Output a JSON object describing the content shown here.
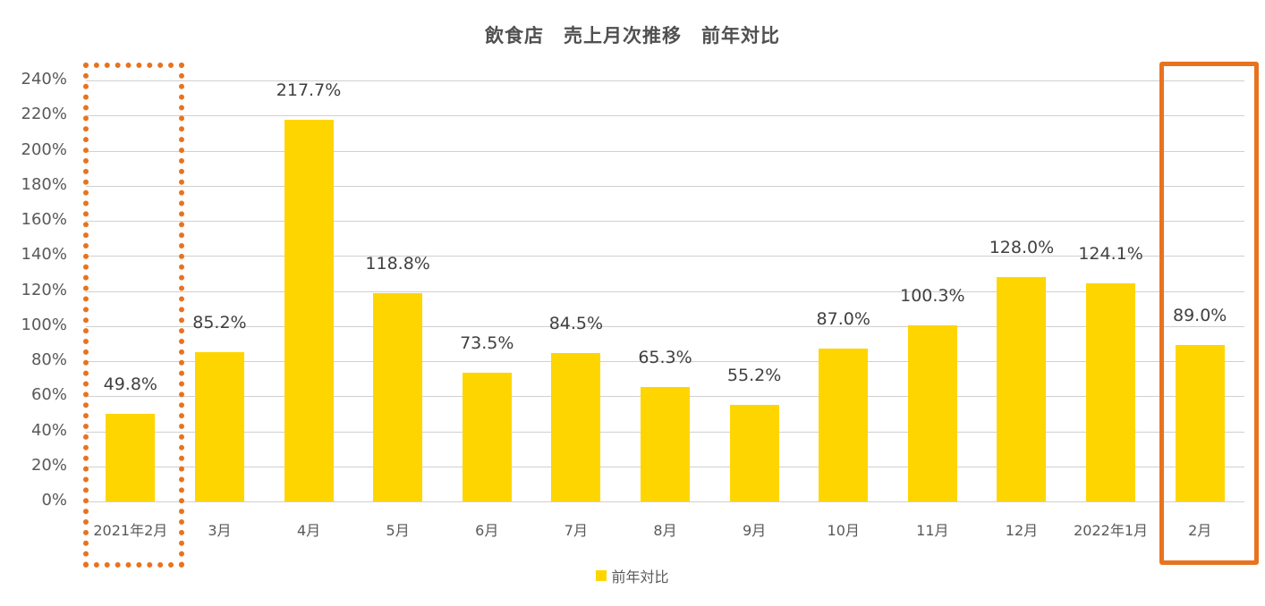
{
  "title": "飲食店　売上月次推移　前年対比",
  "legend": {
    "label": "前年対比"
  },
  "colors": {
    "bar": "#FFD500",
    "highlight": "#E8731F",
    "grid": "#D0D0D0"
  },
  "y_ticks": [
    "0%",
    "20%",
    "40%",
    "60%",
    "80%",
    "100%",
    "120%",
    "140%",
    "160%",
    "180%",
    "200%",
    "220%",
    "240%"
  ],
  "categories": [
    "2021年2月",
    "3月",
    "4月",
    "5月",
    "6月",
    "7月",
    "8月",
    "9月",
    "10月",
    "11月",
    "12月",
    "2022年1月",
    "2月"
  ],
  "data_labels": [
    "49.8%",
    "85.2%",
    "217.7%",
    "118.8%",
    "73.5%",
    "84.5%",
    "65.3%",
    "55.2%",
    "87.0%",
    "100.3%",
    "128.0%",
    "124.1%",
    "89.0%"
  ],
  "chart_data": {
    "type": "bar",
    "title": "飲食店　売上月次推移　前年対比",
    "categories": [
      "2021年2月",
      "3月",
      "4月",
      "5月",
      "6月",
      "7月",
      "8月",
      "9月",
      "10月",
      "11月",
      "12月",
      "2022年1月",
      "2月"
    ],
    "series": [
      {
        "name": "前年対比",
        "values": [
          49.8,
          85.2,
          217.7,
          118.8,
          73.5,
          84.5,
          65.3,
          55.2,
          87.0,
          100.3,
          128.0,
          124.1,
          89.0
        ]
      }
    ],
    "xlabel": "",
    "ylabel": "",
    "ylim": [
      0,
      240
    ],
    "y_tick_step": 20,
    "y_format": "percent",
    "grid": true,
    "legend_position": "bottom",
    "annotations": [
      {
        "type": "dotted-box",
        "target": "2021年2月",
        "color": "#E8731F"
      },
      {
        "type": "solid-box",
        "target": "2月",
        "color": "#E8731F"
      }
    ]
  }
}
